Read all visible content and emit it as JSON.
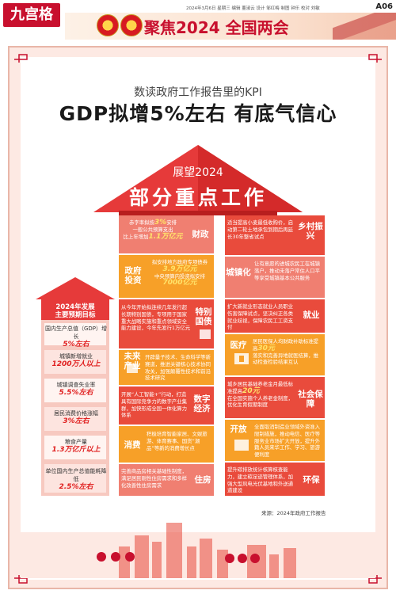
{
  "header": {
    "logo": "九宫格",
    "meta": "2024年3月6日  星期三  编辑 董淑云  设计 邹红梅  制图 钟乐  校对 刘敏",
    "edition": "A06",
    "banner_title": "聚焦2024 全国两会"
  },
  "headline": {
    "subtitle": "数读政府工作报告里的KPI",
    "title": "GDP拟增5%左右  有底气信心"
  },
  "roof": {
    "line1": "展望2024",
    "line2": "部分重点工作"
  },
  "left_targets": {
    "header": [
      "2024年发展",
      "主要预期目标"
    ],
    "items": [
      {
        "text": "国内生产总值（GDP）增长",
        "value": "5%左右"
      },
      {
        "text": "城镇新增就业",
        "value": "1200万人以上"
      },
      {
        "text": "城镇调查失业率",
        "value": "5.5%左右"
      },
      {
        "text": "居民消费价格涨幅",
        "value": "3%左右"
      },
      {
        "text": "粮食产量",
        "value": "1.3万亿斤以上"
      },
      {
        "text": "单位国内生产总值能耗降低",
        "value": "2.5%左右"
      }
    ]
  },
  "blocks": {
    "fiscal": {
      "label": "财政",
      "text1": "赤字率拟按",
      "value1": "3%",
      "text2": "安排",
      "text3": "一般公共预算支出",
      "text4": "比上年增加",
      "value2": "1.1万亿元"
    },
    "invest": {
      "label": "政府投资",
      "text1": "拟安排地方政府专项债券",
      "value1": "3.9万亿元",
      "text2": "中央预算内投资拟安排",
      "value2": "7000亿元"
    },
    "bonds": {
      "label": "特别国债",
      "text": "从今年开始拟连续几年发行超长期特别国债，专项用于国家重大战略实施和重点领域安全能力建设，今年先发行1万亿元"
    },
    "industry": {
      "label": "未来产业",
      "text": "开辟量子技术、生命科学等新赛道，推进关键核心技术协同攻关，加强颠覆性技术和前沿技术研究"
    },
    "digital": {
      "label": "数字经济",
      "text": "开展“人工智能+”行动，打造具有国际竞争力的数字产业集群，加快形成全国一体化算力体系"
    },
    "consume": {
      "label": "消费",
      "text": "积极培育智能家居、文娱旅游、体育赛事、国货“潮品”等新的消费增长点"
    },
    "housing": {
      "label": "住房",
      "text": "完善商品房相关基础性制度，满足居民刚性住房需求和多样化改善性住房需求"
    },
    "rural": {
      "label": "乡村振兴",
      "text": "适当提高小麦最低收购价，启动第二轮土地承包到期后再延长30年整省试点"
    },
    "urban": {
      "label": "城镇化",
      "text": "让有意愿的进城农民工在城镇落户，推动未落户常住人口平等享受城镇基本公共服务"
    },
    "employ": {
      "label": "就业",
      "text": "扩大新就业形态就业人员职业伤害保障试点，坚决纠正各类就业歧视，保障农民工工资支付"
    },
    "medical": {
      "label": "医疗",
      "text1": "居民医保人均财政补助标准提高",
      "value1": "30元",
      "text2": "落实和完善异地就医结算，推动检查检验结果互认"
    },
    "social": {
      "label": "社会保障",
      "text1": "城乡居民基础养老金月最低标准提高",
      "value1": "20元",
      "text2": "在全国实施个人养老金制度，优化生育假期制度"
    },
    "open": {
      "label": "开放",
      "text": "全面取消制造业领域外资准入限制措施，推动电信、医疗等服务业市场扩大开放，提升外籍人员来华工作、学习、旅游便利度"
    },
    "env": {
      "label": "环保",
      "text": "提升碳排放统计核算核查能力，建立碳足迹管理体系，加强大型风电光伏基地和外送通道建设"
    }
  },
  "source": "来源：2024年政府工作报告"
}
